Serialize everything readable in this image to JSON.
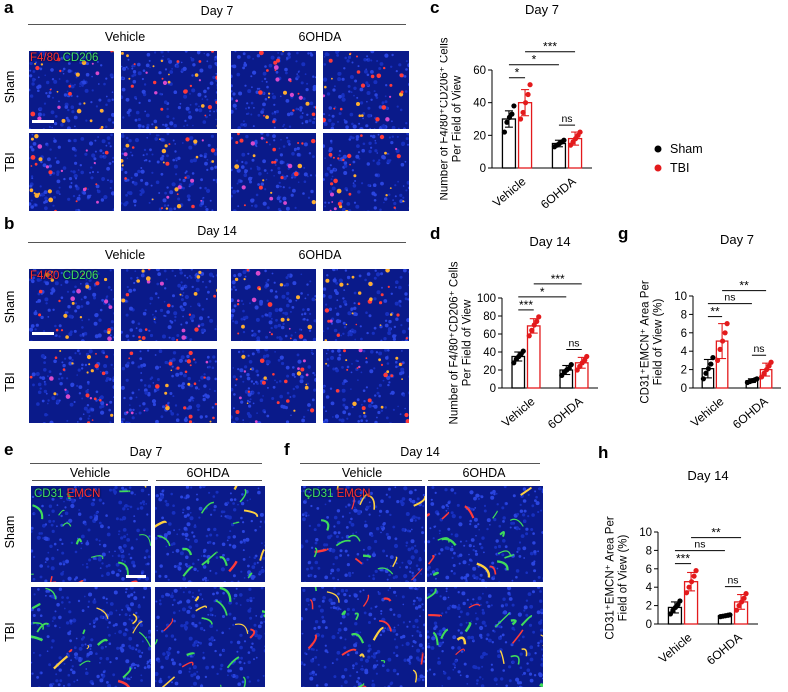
{
  "colors": {
    "sham": "#000000",
    "tbi": "#e31a1c",
    "dapi": "#1a2fb5",
    "f480": "#ff2a2a",
    "cd206": "#3fd15a",
    "merge": "#ff9a2a"
  },
  "panel_labels": [
    "a",
    "b",
    "c",
    "d",
    "e",
    "f",
    "g",
    "h"
  ],
  "panel_a": {
    "title": "Day 7",
    "groups": [
      "Vehicle",
      "6OHDA"
    ],
    "rows": [
      "Sham",
      "TBI"
    ],
    "channel_1": "F4/80",
    "channel_2": "CD206"
  },
  "panel_b": {
    "title": "Day 14",
    "groups": [
      "Vehicle",
      "6OHDA"
    ],
    "rows": [
      "Sham",
      "TBI"
    ],
    "channel_1": "F4/80",
    "channel_2": "CD206"
  },
  "panel_e": {
    "title": "Day 7",
    "groups": [
      "Vehicle",
      "6OHDA"
    ],
    "rows": [
      "Sham",
      "TBI"
    ],
    "channel_1": "CD31",
    "channel_2": "EMCN"
  },
  "panel_f": {
    "title": "Day 14",
    "groups": [
      "Vehicle",
      "6OHDA"
    ],
    "channel_1": "CD31",
    "channel_2": "EMCN"
  },
  "legend": {
    "items": [
      "Sham",
      "TBI"
    ]
  },
  "chart_data": [
    {
      "id": "c",
      "type": "bar",
      "title": "Day 7",
      "ylabel_lines": [
        "Number of F4/80⁺CD206⁺ Cells",
        "Per Field of View"
      ],
      "categories": [
        "Vehicle",
        "6OHDA"
      ],
      "ylim": [
        0,
        60
      ],
      "yticks": [
        0,
        20,
        40,
        60
      ],
      "series": [
        {
          "name": "Sham",
          "values": [
            30,
            15
          ],
          "err": [
            5,
            2
          ],
          "points": [
            [
              22,
              28,
              31,
              33,
              38
            ],
            [
              13,
              14,
              15,
              16,
              17
            ]
          ]
        },
        {
          "name": "TBI",
          "values": [
            40,
            18
          ],
          "err": [
            8,
            4
          ],
          "points": [
            [
              30,
              34,
              40,
              45,
              51
            ],
            [
              14,
              16,
              18,
              20,
              22
            ]
          ]
        }
      ],
      "sig": [
        {
          "from": [
            0,
            0
          ],
          "to": [
            0,
            1
          ],
          "label": "*"
        },
        {
          "from": [
            0,
            0
          ],
          "to": [
            1,
            0
          ],
          "label": "*"
        },
        {
          "from": [
            0,
            1
          ],
          "to": [
            1,
            1
          ],
          "label": "***"
        },
        {
          "from": [
            1,
            0
          ],
          "to": [
            1,
            1
          ],
          "label": "ns"
        }
      ]
    },
    {
      "id": "d",
      "type": "bar",
      "title": "Day 14",
      "ylabel_lines": [
        "Number of F4/80⁺CD206⁺ Cells",
        "Per Field of View"
      ],
      "categories": [
        "Vehicle",
        "6OHDA"
      ],
      "ylim": [
        0,
        100
      ],
      "yticks": [
        0,
        20,
        40,
        60,
        80,
        100
      ],
      "series": [
        {
          "name": "Sham",
          "values": [
            35,
            20
          ],
          "err": [
            5,
            5
          ],
          "points": [
            [
              28,
              32,
              35,
              38,
              41
            ],
            [
              14,
              18,
              20,
              22,
              26
            ]
          ]
        },
        {
          "name": "TBI",
          "values": [
            69,
            28
          ],
          "err": [
            8,
            6
          ],
          "points": [
            [
              58,
              64,
              70,
              74,
              79
            ],
            [
              20,
              24,
              28,
              31,
              35
            ]
          ]
        }
      ],
      "sig": [
        {
          "from": [
            0,
            0
          ],
          "to": [
            0,
            1
          ],
          "label": "***"
        },
        {
          "from": [
            0,
            0
          ],
          "to": [
            1,
            0
          ],
          "label": "*"
        },
        {
          "from": [
            0,
            1
          ],
          "to": [
            1,
            1
          ],
          "label": "***"
        },
        {
          "from": [
            1,
            0
          ],
          "to": [
            1,
            1
          ],
          "label": "ns"
        }
      ]
    },
    {
      "id": "g",
      "type": "bar",
      "title": "Day 7",
      "ylabel_lines": [
        "CD31⁺EMCN⁺ Area Per",
        "Field of View (%)"
      ],
      "categories": [
        "Vehicle",
        "6OHDA"
      ],
      "ylim": [
        0,
        10
      ],
      "yticks": [
        0,
        2,
        4,
        6,
        8,
        10
      ],
      "series": [
        {
          "name": "Sham",
          "values": [
            2.1,
            0.8
          ],
          "err": [
            1.0,
            0.2
          ],
          "points": [
            [
              1.0,
              1.6,
              2.1,
              2.6,
              3.3
            ],
            [
              0.6,
              0.7,
              0.8,
              0.9,
              1.0
            ]
          ]
        },
        {
          "name": "TBI",
          "values": [
            5.1,
            2.0
          ],
          "err": [
            1.9,
            0.7
          ],
          "points": [
            [
              3.0,
              4.2,
              5.1,
              6.0,
              7.0
            ],
            [
              1.2,
              1.6,
              2.0,
              2.4,
              2.8
            ]
          ]
        }
      ],
      "sig": [
        {
          "from": [
            0,
            0
          ],
          "to": [
            0,
            1
          ],
          "label": "**"
        },
        {
          "from": [
            0,
            0
          ],
          "to": [
            1,
            0
          ],
          "label": "ns"
        },
        {
          "from": [
            0,
            1
          ],
          "to": [
            1,
            1
          ],
          "label": "**"
        },
        {
          "from": [
            1,
            0
          ],
          "to": [
            1,
            1
          ],
          "label": "ns"
        }
      ]
    },
    {
      "id": "h",
      "type": "bar",
      "title": "Day 14",
      "ylabel_lines": [
        "CD31⁺EMCN⁺ Area Per",
        "Field of View (%)"
      ],
      "categories": [
        "Vehicle",
        "6OHDA"
      ],
      "ylim": [
        0,
        10
      ],
      "yticks": [
        0,
        2,
        4,
        6,
        8,
        10
      ],
      "series": [
        {
          "name": "Sham",
          "values": [
            1.8,
            0.9
          ],
          "err": [
            0.6,
            0.1
          ],
          "points": [
            [
              1.1,
              1.5,
              1.8,
              2.1,
              2.5
            ],
            [
              0.8,
              0.85,
              0.9,
              0.95,
              1.0
            ]
          ]
        },
        {
          "name": "TBI",
          "values": [
            4.6,
            2.4
          ],
          "err": [
            1.0,
            0.8
          ],
          "points": [
            [
              3.4,
              4.0,
              4.6,
              5.2,
              5.8
            ],
            [
              1.5,
              2.0,
              2.4,
              2.8,
              3.3
            ]
          ]
        }
      ],
      "sig": [
        {
          "from": [
            0,
            0
          ],
          "to": [
            0,
            1
          ],
          "label": "***"
        },
        {
          "from": [
            0,
            0
          ],
          "to": [
            1,
            0
          ],
          "label": "ns"
        },
        {
          "from": [
            0,
            1
          ],
          "to": [
            1,
            1
          ],
          "label": "**"
        },
        {
          "from": [
            1,
            0
          ],
          "to": [
            1,
            1
          ],
          "label": "ns"
        }
      ]
    }
  ]
}
